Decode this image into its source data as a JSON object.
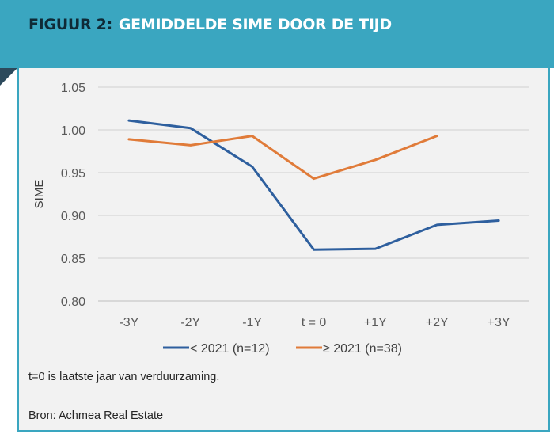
{
  "header": {
    "figure_label": "FIGUUR 2:",
    "figure_title": "GEMIDDELDE SIME DOOR DE TIJD",
    "background_color": "#3aa6c0"
  },
  "chart_data": {
    "type": "line",
    "categories": [
      "-3Y",
      "-2Y",
      "-1Y",
      "t = 0",
      "+1Y",
      "+2Y",
      "+3Y"
    ],
    "series": [
      {
        "name": "< 2021 (n=12)",
        "color": "#2e5f9e",
        "values": [
          1.011,
          1.002,
          0.957,
          0.86,
          0.861,
          0.889,
          0.894
        ]
      },
      {
        "name": "≥ 2021 (n=38)",
        "color": "#e07b39",
        "values": [
          0.989,
          0.982,
          0.993,
          0.943,
          0.965,
          0.993,
          null
        ]
      }
    ],
    "ylabel": "SIME",
    "xlabel": "",
    "ylim": [
      0.8,
      1.05
    ],
    "yticks": [
      0.8,
      0.85,
      0.9,
      0.95,
      1.0,
      1.05
    ],
    "ytick_labels": [
      "0.80",
      "0.85",
      "0.90",
      "0.95",
      "1.00",
      "1.05"
    ],
    "grid": "horizontal",
    "legend_position": "bottom"
  },
  "notes": {
    "footnote": "t=0 is laatste jaar van verduurzaming.",
    "source": "Bron: Achmea Real Estate"
  }
}
